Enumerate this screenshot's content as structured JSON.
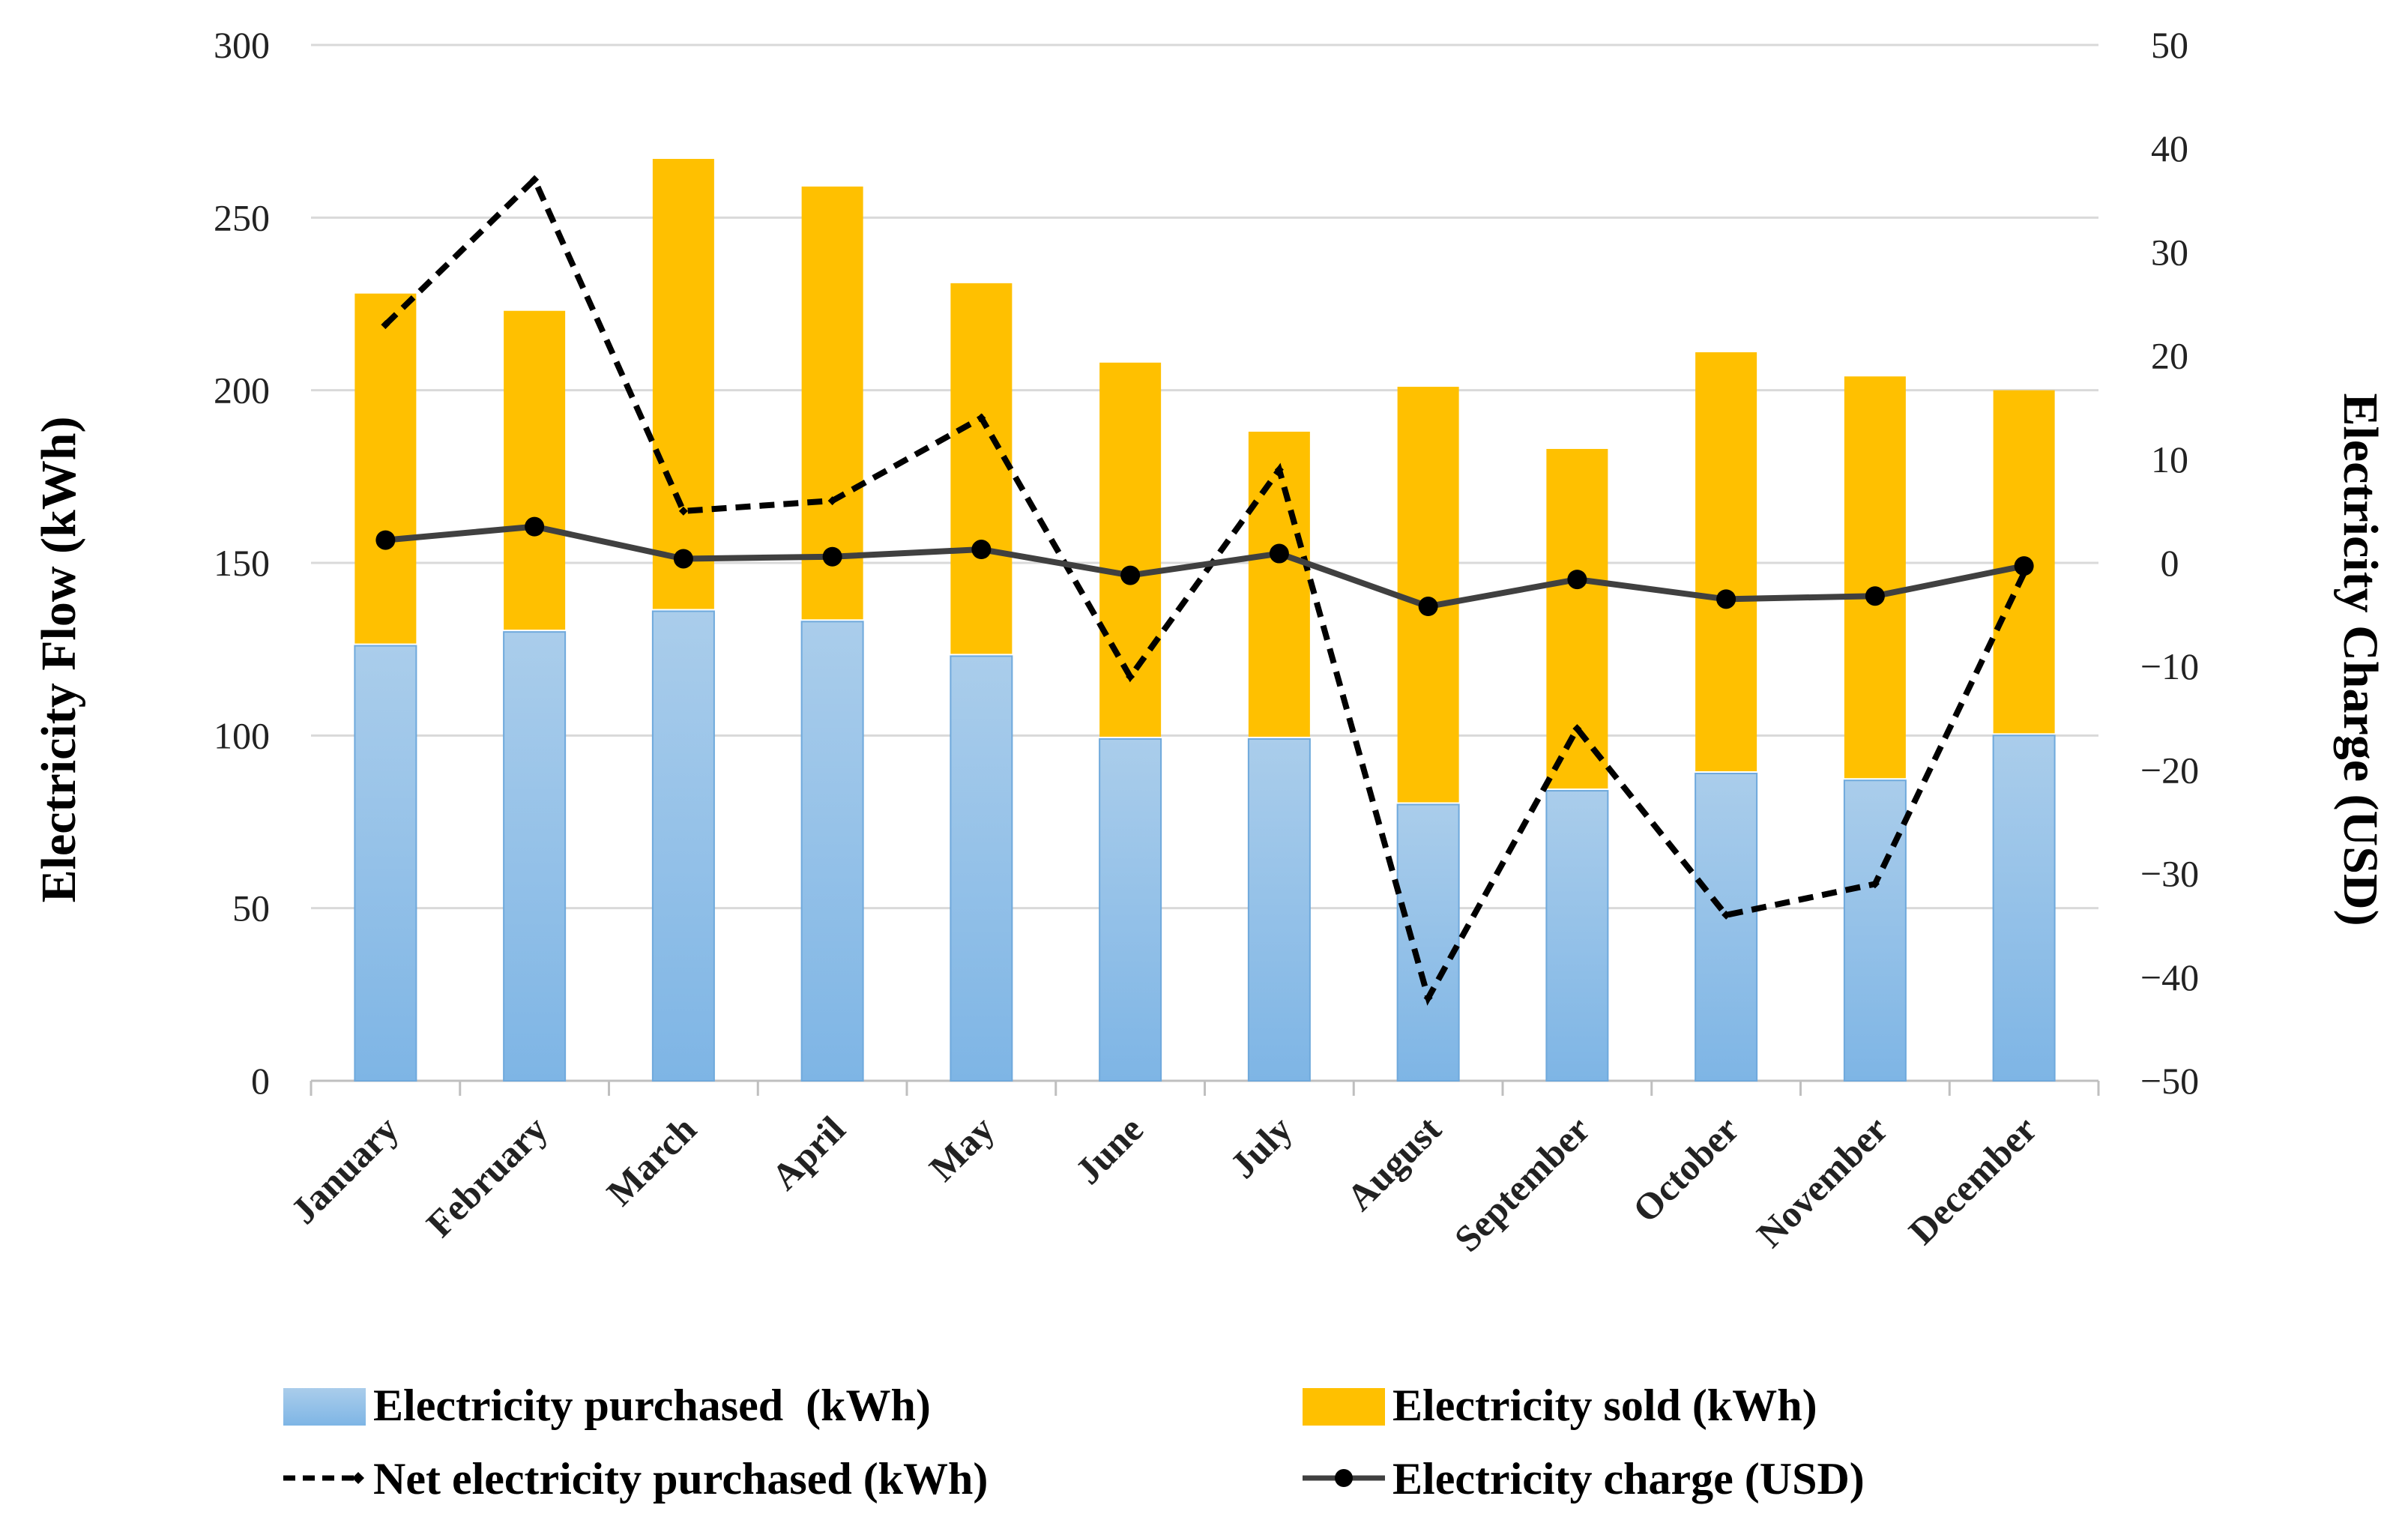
{
  "chart_data": {
    "type": "bar",
    "categories": [
      "January",
      "February",
      "March",
      "April",
      "May",
      "June",
      "July",
      "August",
      "September",
      "October",
      "November",
      "December"
    ],
    "series": [
      {
        "name": "Electricity purchased  (kWh)",
        "kind": "bar-stack-bottom",
        "axis": "left",
        "values": [
          126,
          130,
          136,
          133,
          123,
          99,
          99,
          80,
          84,
          89,
          87,
          100
        ]
      },
      {
        "name": "Electricity sold (kWh)",
        "kind": "bar-stack-top",
        "axis": "left",
        "values": [
          102,
          93,
          131,
          126,
          108,
          109,
          89,
          121,
          99,
          122,
          117,
          100
        ]
      },
      {
        "name": "Net electricity purchased (kWh)",
        "kind": "line-dashed",
        "axis": "right",
        "values": [
          23,
          37,
          5,
          6,
          14,
          -11,
          9,
          -42,
          -16,
          -34,
          -31,
          -1
        ]
      },
      {
        "name": "Electricity charge (USD)",
        "kind": "line-markers",
        "axis": "right",
        "values": [
          2.2,
          3.5,
          0.4,
          0.6,
          1.3,
          -1.2,
          0.9,
          -4.2,
          -1.6,
          -3.5,
          -3.2,
          -0.3
        ]
      }
    ],
    "ylabel": "Electricity Flow (kWh)",
    "ylabel_right": "Electricity Charge (USD)",
    "ylim": [
      0,
      300
    ],
    "yticks": [
      "0",
      "50",
      "100",
      "150",
      "200",
      "250",
      "300"
    ],
    "ylim_right": [
      -50,
      50
    ],
    "yticks_right": [
      "−50",
      "−40",
      "−30",
      "−20",
      "−10",
      "0",
      "10",
      "20",
      "30",
      "40",
      "50"
    ],
    "grid": true,
    "legend_position": "bottom",
    "colors": {
      "purchased_top": "#aacdeb",
      "purchased_bottom": "#7eb5e5",
      "purchased_border": "#6fa9dc",
      "sold": "#ffc000",
      "net_line": "#000000",
      "charge_line": "#404040",
      "grid": "#d9d9d9",
      "axis": "#bfbfbf"
    }
  }
}
